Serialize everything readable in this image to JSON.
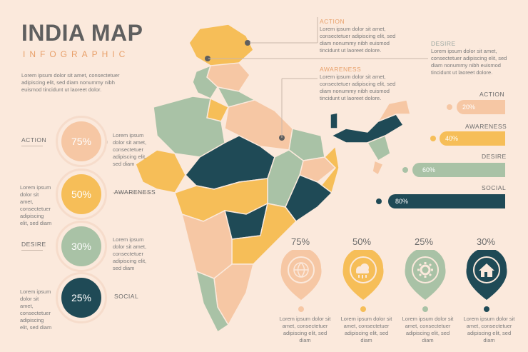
{
  "header": {
    "title": "INDIA MAP",
    "subtitle": "INFOGRAPHIC",
    "intro": "Lorem ipsum dolor sit amet, consectetuer adipiscing elit, sed diam nonummy nibh euismod tincidunt ut laoreet dolor."
  },
  "left": {
    "items": [
      {
        "label": "ACTION",
        "value": "75%",
        "text": "Lorem ipsum dolor sit amet, consectetuer adipiscing elit, sed diam"
      },
      {
        "label": "AWARENESS",
        "value": "50%",
        "text": "Lorem ipsum dolor sit amet, consectetuer adipiscing elit, sed diam"
      },
      {
        "label": "DESIRE",
        "value": "30%",
        "text": "Lorem ipsum dolor sit amet, consectetuer adipiscing elit, sed diam"
      },
      {
        "label": "SOCIAL",
        "value": "25%",
        "text": "Lorem ipsum dolor sit amet, consectetuer adipiscing elit, sed diam"
      }
    ]
  },
  "callouts": [
    {
      "label": "ACTION",
      "text": "Lorem ipsum dolor sit amet, consectetuer adipiscing elit, sed diam nonummy nibh euismod tincidunt ut laoreet dolore."
    },
    {
      "label": "DESIRE",
      "text": "Lorem ipsum dolor sit amet, consectetuer adipiscing elit, sed diam nonummy nibh euismod tincidunt ut laoreet dolore."
    },
    {
      "label": "AWARENESS",
      "text": "Lorem ipsum dolor sit amet, consectetuer adipiscing elit, sed diam nonummy nibh euismod tincidunt ut laoreet dolore."
    }
  ],
  "bars": [
    {
      "label": "ACTION",
      "value": "20%",
      "fraction": 0.2,
      "color": "#f6c7a4"
    },
    {
      "label": "AWARENESS",
      "value": "40%",
      "fraction": 0.4,
      "color": "#f6be58"
    },
    {
      "label": "DESIRE",
      "value": "60%",
      "fraction": 0.6,
      "color": "#a9c2a6"
    },
    {
      "label": "SOCIAL",
      "value": "80%",
      "fraction": 0.8,
      "color": "#1f4a56"
    }
  ],
  "pins": [
    {
      "value": "75%",
      "icon": "globe-icon",
      "color": "#f6c7a4",
      "text": "Lorem ipsum dolor sit amet, consectetuer adipiscing elit, sed diam"
    },
    {
      "value": "50%",
      "icon": "cloud-icon",
      "color": "#f6be58",
      "text": "Lorem ipsum dolor sit amet, consectetuer adipiscing elit, sed diam"
    },
    {
      "value": "25%",
      "icon": "gear-icon",
      "color": "#a9c2a6",
      "text": "Lorem ipsum dolor sit amet, consectetuer adipiscing elit, sed diam"
    },
    {
      "value": "30%",
      "icon": "home-icon",
      "color": "#1f4a56",
      "text": "Lorem ipsum dolor sit amet, consectetuer adipiscing elit, sed diam"
    }
  ],
  "colors": {
    "bg": "#fbe9dc",
    "peach": "#f6c7a4",
    "yellow": "#f6be58",
    "sage": "#a9c2a6",
    "teal": "#1f4a56"
  }
}
